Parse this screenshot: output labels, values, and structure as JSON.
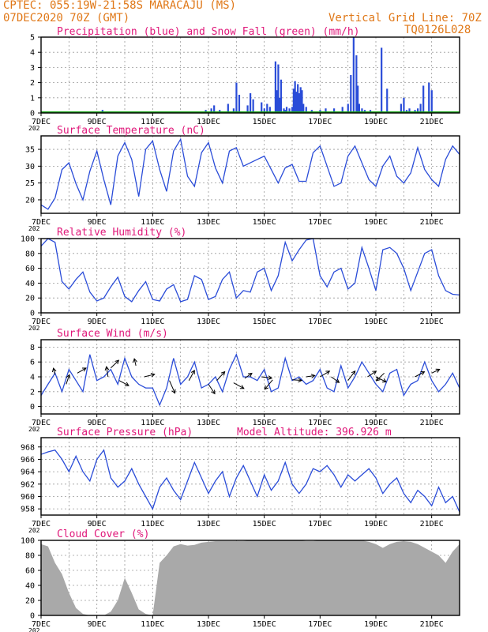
{
  "header": {
    "line1": "CPTEC:   055:19W-21:58S   MARACAJU (MS)",
    "line2": "07DEC2020 70Z (GMT)",
    "grid_note": "Vertical Grid Line: 70Z",
    "code": "TQ0126L028"
  },
  "x_ticks": [
    "7DEC",
    "9DEC",
    "11DEC",
    "13DEC",
    "15DEC",
    "17DEC",
    "19DEC",
    "21DEC"
  ],
  "x_tick_stub": "202",
  "colors": {
    "frame": "#000000",
    "line": "#2a4cd8",
    "title": "#e0187a",
    "header": "#e07818",
    "snow": "#1aa31a",
    "cloud": "#a9a9a9",
    "grid": "#9a9a9a"
  },
  "chart_data": [
    {
      "id": "precip",
      "type": "bar",
      "title": "Precipitation (blue) and Snow Fall (green) (mm/h)",
      "ylim": [
        0,
        5
      ],
      "yticks": [
        0,
        1,
        2,
        3,
        4,
        5
      ],
      "series": [
        {
          "name": "Precipitation",
          "color": "#2a4cd8",
          "x": [
            2.2,
            3.1,
            5.7,
            5.9,
            6.1,
            6.2,
            6.4,
            6.7,
            6.9,
            7.0,
            7.1,
            7.4,
            7.5,
            7.6,
            7.9,
            8.0,
            8.1,
            8.2,
            8.4,
            8.45,
            8.5,
            8.55,
            8.6,
            8.7,
            8.75,
            8.8,
            8.9,
            9.0,
            9.05,
            9.1,
            9.15,
            9.2,
            9.25,
            9.3,
            9.35,
            9.4,
            9.5,
            9.7,
            9.9,
            10.0,
            10.2,
            10.5,
            10.8,
            11.0,
            11.1,
            11.2,
            11.3,
            11.35,
            11.4,
            11.5,
            11.6,
            11.7,
            11.8,
            12.2,
            12.4,
            12.9,
            13.0,
            13.1,
            13.2,
            13.4,
            13.5,
            13.6,
            13.7,
            13.9,
            14.0
          ],
          "values": [
            0.2,
            0.1,
            0.1,
            0.2,
            0.3,
            0.5,
            0.2,
            0.6,
            0.3,
            2.0,
            1.2,
            0.5,
            1.3,
            0.9,
            0.7,
            0.3,
            0.6,
            0.4,
            3.4,
            1.5,
            3.2,
            1.0,
            2.2,
            0.3,
            0.2,
            0.4,
            0.3,
            0.4,
            1.6,
            2.1,
            1.4,
            1.9,
            1.3,
            1.7,
            1.5,
            0.6,
            0.4,
            0.2,
            0.1,
            0.2,
            0.3,
            0.3,
            0.4,
            0.6,
            2.5,
            5.0,
            3.8,
            1.8,
            0.6,
            0.3,
            0.2,
            0.1,
            0.2,
            4.3,
            1.6,
            0.6,
            1.0,
            0.2,
            0.3,
            0.2,
            0.3,
            0.6,
            1.8,
            2.0,
            1.5
          ]
        },
        {
          "name": "Snow Fall",
          "color": "#1aa31a",
          "values": [
            0
          ]
        }
      ]
    },
    {
      "id": "temp",
      "type": "line",
      "title": "Surface Temperature (nC)",
      "ylim": [
        16,
        39
      ],
      "yticks": [
        20,
        25,
        30,
        35
      ],
      "x": [
        0,
        0.25,
        0.5,
        0.75,
        1.0,
        1.25,
        1.5,
        1.75,
        2.0,
        2.25,
        2.5,
        2.75,
        3.0,
        3.25,
        3.5,
        3.75,
        4.0,
        4.25,
        4.5,
        4.75,
        5.0,
        5.25,
        5.5,
        5.75,
        6.0,
        6.25,
        6.5,
        6.75,
        7.0,
        7.25,
        7.5,
        7.75,
        8.0,
        8.25,
        8.5,
        8.75,
        9.0,
        9.25,
        9.5,
        9.75,
        10.0,
        10.25,
        10.5,
        10.75,
        11.0,
        11.25,
        11.5,
        11.75,
        12.0,
        12.25,
        12.5,
        12.75,
        13.0,
        13.25,
        13.5,
        13.75,
        14.0,
        14.25,
        14.5,
        14.75,
        15.0
      ],
      "values": [
        18.5,
        17.2,
        20.5,
        29,
        31,
        24.8,
        20,
        28.5,
        34.5,
        26,
        18.5,
        33,
        37,
        32,
        21,
        35,
        37.5,
        29,
        22.5,
        34.5,
        38,
        27,
        24,
        34,
        37,
        29.5,
        25,
        34.5,
        35.5,
        30,
        31,
        32,
        33,
        29,
        25,
        29.5,
        30.5,
        25.5,
        25.5,
        34,
        36,
        30,
        24,
        25,
        33,
        36,
        31,
        26,
        24,
        30,
        33,
        27,
        25,
        28,
        35.5,
        29,
        26,
        24,
        32,
        36,
        33.5
      ]
    },
    {
      "id": "rh",
      "type": "line",
      "title": "Relative Humidity (%)",
      "ylim": [
        0,
        100
      ],
      "yticks": [
        0,
        20,
        40,
        60,
        80,
        100
      ],
      "x": [
        0,
        0.25,
        0.5,
        0.75,
        1.0,
        1.25,
        1.5,
        1.75,
        2.0,
        2.25,
        2.5,
        2.75,
        3.0,
        3.25,
        3.5,
        3.75,
        4.0,
        4.25,
        4.5,
        4.75,
        5.0,
        5.25,
        5.5,
        5.75,
        6.0,
        6.25,
        6.5,
        6.75,
        7.0,
        7.25,
        7.5,
        7.75,
        8.0,
        8.25,
        8.5,
        8.75,
        9.0,
        9.25,
        9.5,
        9.75,
        10.0,
        10.25,
        10.5,
        10.75,
        11.0,
        11.25,
        11.5,
        11.75,
        12.0,
        12.25,
        12.5,
        12.75,
        13.0,
        13.25,
        13.5,
        13.75,
        14.0,
        14.25,
        14.5,
        14.75,
        15.0
      ],
      "values": [
        90,
        100,
        95,
        42,
        32,
        45,
        55,
        28,
        16,
        20,
        35,
        48,
        22,
        15,
        30,
        42,
        18,
        16,
        32,
        38,
        15,
        18,
        50,
        45,
        18,
        22,
        45,
        55,
        20,
        30,
        28,
        55,
        60,
        30,
        50,
        95,
        70,
        85,
        98,
        100,
        50,
        35,
        55,
        60,
        32,
        40,
        88,
        60,
        30,
        85,
        88,
        80,
        60,
        30,
        55,
        80,
        85,
        50,
        30,
        25,
        24
      ]
    },
    {
      "id": "wind",
      "type": "line",
      "title": "Surface Wind (m/s)",
      "ylim": [
        -1,
        9
      ],
      "yticks": [
        0,
        2,
        4,
        6,
        8
      ],
      "x": [
        0,
        0.25,
        0.5,
        0.75,
        1.0,
        1.25,
        1.5,
        1.75,
        2.0,
        2.25,
        2.5,
        2.75,
        3.0,
        3.25,
        3.5,
        3.75,
        4.0,
        4.25,
        4.5,
        4.75,
        5.0,
        5.25,
        5.5,
        5.75,
        6.0,
        6.25,
        6.5,
        6.75,
        7.0,
        7.25,
        7.5,
        7.75,
        8.0,
        8.25,
        8.5,
        8.75,
        9.0,
        9.25,
        9.5,
        9.75,
        10.0,
        10.25,
        10.5,
        10.75,
        11.0,
        11.25,
        11.5,
        11.75,
        12.0,
        12.25,
        12.5,
        12.75,
        13.0,
        13.25,
        13.5,
        13.75,
        14.0,
        14.25,
        14.5,
        14.75,
        15.0
      ],
      "values": [
        1.5,
        3,
        4.5,
        2,
        5,
        3.5,
        2,
        7,
        3.5,
        4,
        5,
        3,
        6.5,
        4,
        3,
        2.5,
        2.5,
        0.2,
        2.5,
        6.5,
        3,
        4,
        6,
        2.5,
        3,
        4,
        2,
        5,
        7,
        4,
        4,
        3.5,
        5,
        2,
        2.5,
        6.5,
        3.5,
        4,
        3,
        3.5,
        5,
        2.5,
        2,
        5.5,
        2.5,
        4,
        6,
        4.5,
        3,
        2,
        4.5,
        5,
        1.5,
        3,
        3.5,
        6,
        3.5,
        2,
        3,
        4.5,
        2.5
      ],
      "arrows": [
        [
          0.5,
          4.3,
          -0.2,
          1.0
        ],
        [
          0.9,
          3.0,
          0.4,
          1.5
        ],
        [
          1.3,
          4.5,
          1.1,
          0.8
        ],
        [
          2.4,
          4.0,
          -0.2,
          1.6
        ],
        [
          2.5,
          5.2,
          1.0,
          1.2
        ],
        [
          2.8,
          3.5,
          1.2,
          -0.8
        ],
        [
          3.4,
          5.5,
          -0.2,
          1.1
        ],
        [
          3.7,
          4.0,
          1.3,
          0.4
        ],
        [
          4.6,
          3.5,
          0.7,
          -2.0
        ],
        [
          5.3,
          3.5,
          0.7,
          1.6
        ],
        [
          6.0,
          3.0,
          0.8,
          -1.5
        ],
        [
          6.3,
          3.5,
          1.0,
          1.4
        ],
        [
          6.9,
          3.2,
          1.3,
          -0.9
        ],
        [
          7.3,
          3.8,
          0.9,
          0.8
        ],
        [
          7.9,
          4.0,
          1.3,
          -0.2
        ],
        [
          8.3,
          3.6,
          -1.0,
          -1.5
        ],
        [
          9.0,
          3.6,
          1.2,
          -0.1
        ],
        [
          9.5,
          4.0,
          1.1,
          0.2
        ],
        [
          10.0,
          4.0,
          1.2,
          0.9
        ],
        [
          10.4,
          4.0,
          1.0,
          -0.9
        ],
        [
          11.0,
          3.5,
          0.9,
          1.5
        ],
        [
          11.7,
          4.0,
          1.1,
          0.9
        ],
        [
          12.0,
          4.0,
          1.3,
          -0.8
        ],
        [
          12.3,
          4.5,
          -1.0,
          -1.2
        ],
        [
          13.4,
          4.0,
          1.2,
          0.8
        ],
        [
          14.0,
          4.5,
          1.0,
          0.6
        ]
      ]
    },
    {
      "id": "pres",
      "type": "line",
      "title": "Surface Pressure (hPa)",
      "subtitle": "Model Altitude: 396.926 m",
      "ylim": [
        957,
        969.5
      ],
      "yticks": [
        958,
        960,
        962,
        964,
        966,
        968
      ],
      "x": [
        0,
        0.25,
        0.5,
        0.75,
        1.0,
        1.25,
        1.5,
        1.75,
        2.0,
        2.25,
        2.5,
        2.75,
        3.0,
        3.25,
        3.5,
        3.75,
        4.0,
        4.25,
        4.5,
        4.75,
        5.0,
        5.25,
        5.5,
        5.75,
        6.0,
        6.25,
        6.5,
        6.75,
        7.0,
        7.25,
        7.5,
        7.75,
        8.0,
        8.25,
        8.5,
        8.75,
        9.0,
        9.25,
        9.5,
        9.75,
        10.0,
        10.25,
        10.5,
        10.75,
        11.0,
        11.25,
        11.5,
        11.75,
        12.0,
        12.25,
        12.5,
        12.75,
        13.0,
        13.25,
        13.5,
        13.75,
        14.0,
        14.25,
        14.5,
        14.75,
        15.0
      ],
      "values": [
        966.8,
        967.2,
        967.5,
        966,
        964,
        966.5,
        964,
        962.5,
        966,
        967.5,
        963,
        961.5,
        962.5,
        964.5,
        962,
        960,
        958,
        961.5,
        963,
        961,
        959.5,
        962.5,
        965.5,
        963,
        960.5,
        962.5,
        964,
        960,
        963,
        965,
        962.5,
        960,
        963.5,
        961,
        962.5,
        965.5,
        962,
        960.5,
        962,
        964.5,
        964,
        965,
        963.5,
        961.5,
        963.5,
        962.5,
        963.5,
        964.5,
        963,
        960.5,
        962,
        963,
        960.5,
        959,
        961,
        960,
        958.5,
        961.5,
        959,
        960,
        957.5
      ]
    },
    {
      "id": "cloud",
      "type": "area",
      "title": "Cloud Cover (%)",
      "ylim": [
        0,
        100
      ],
      "yticks": [
        0,
        20,
        40,
        60,
        80,
        100
      ],
      "x": [
        0,
        0.25,
        0.5,
        0.75,
        1.0,
        1.25,
        1.5,
        1.75,
        2.0,
        2.25,
        2.5,
        2.75,
        3.0,
        3.25,
        3.5,
        3.75,
        4.0,
        4.25,
        4.5,
        4.75,
        5.0,
        5.25,
        5.5,
        5.75,
        6.0,
        6.25,
        6.5,
        6.75,
        7.0,
        7.25,
        7.5,
        7.75,
        8.0,
        8.25,
        8.5,
        8.75,
        9.0,
        9.25,
        9.5,
        9.75,
        10.0,
        10.25,
        10.5,
        10.75,
        11.0,
        11.25,
        11.5,
        11.75,
        12.0,
        12.25,
        12.5,
        12.75,
        13.0,
        13.25,
        13.5,
        13.75,
        14.0,
        14.25,
        14.5,
        14.75,
        15.0
      ],
      "values": [
        95,
        92,
        70,
        55,
        30,
        10,
        2,
        0,
        0,
        0,
        5,
        20,
        50,
        30,
        8,
        2,
        0,
        70,
        80,
        92,
        95,
        93,
        94,
        97,
        98,
        99,
        99,
        99,
        99,
        99,
        100,
        100,
        100,
        100,
        100,
        100,
        100,
        100,
        99,
        99,
        100,
        100,
        100,
        100,
        100,
        100,
        100,
        98,
        95,
        90,
        95,
        98,
        99,
        98,
        95,
        90,
        85,
        80,
        70,
        85,
        95
      ]
    }
  ]
}
